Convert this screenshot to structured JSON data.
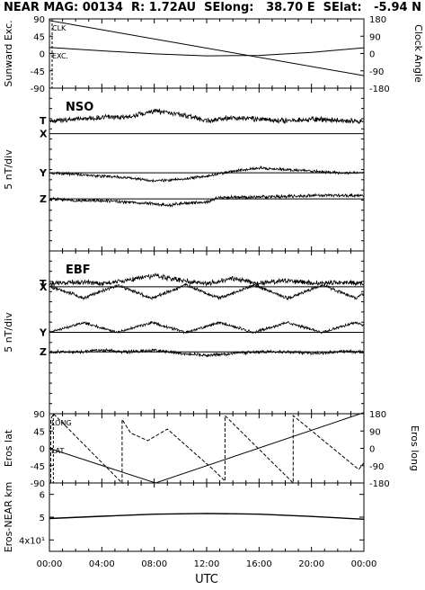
{
  "header": {
    "title": "NEAR MAG: 00134  R: 1.72AU  SElong:   38.70 E  SElat:   -5.94 N"
  },
  "x_axis": {
    "label": "UTC",
    "ticks": [
      "00:00",
      "04:00",
      "08:00",
      "12:00",
      "16:00",
      "20:00",
      "00:00"
    ]
  },
  "chart_data": [
    {
      "type": "line",
      "panel": "sunward-clock",
      "ylabel": "Sunward Exc.",
      "y2label": "Clock Angle",
      "yticks": [
        "90",
        "45",
        "0",
        "-45",
        "-90"
      ],
      "y2ticks": [
        "180",
        "90",
        "0",
        "-90",
        "-180"
      ],
      "annotations": [
        "CLK",
        "EXC."
      ],
      "ylim": [
        -90,
        90
      ],
      "y2lim": [
        -180,
        180
      ],
      "xlim": [
        0,
        24
      ],
      "series": [
        {
          "name": "CLK",
          "axis": "right",
          "x": [
            0,
            24
          ],
          "y": [
            171,
            -115
          ]
        },
        {
          "name": "EXC.",
          "axis": "left",
          "x": [
            0,
            4,
            8,
            12,
            16,
            20,
            24
          ],
          "y": [
            16,
            7,
            -1,
            -6,
            -5,
            3,
            15
          ]
        }
      ]
    },
    {
      "type": "line",
      "panel": "nso",
      "title": "NSO",
      "ylabel": "5 nT/div",
      "trace_labels": [
        "T",
        "X",
        "Y",
        "Z"
      ],
      "ylim": [
        -4,
        1
      ],
      "xlim": [
        0,
        24
      ],
      "series": [
        {
          "name": "T",
          "x": [
            0,
            2,
            4,
            6,
            8,
            10,
            12,
            14,
            16,
            18,
            20,
            22,
            24
          ],
          "y": [
            0.0,
            0.05,
            0.1,
            0.12,
            0.3,
            0.2,
            0.0,
            0.1,
            0.05,
            0.0,
            0.05,
            0.0,
            0.0
          ]
        },
        {
          "name": "X",
          "x": [
            0,
            24
          ],
          "y": [
            -0.4,
            -0.4
          ]
        },
        {
          "name": "Y",
          "x": [
            0,
            2,
            4,
            6,
            8,
            10,
            12,
            14,
            16,
            18,
            20,
            22,
            24
          ],
          "y": [
            -1.6,
            -1.65,
            -1.7,
            -1.75,
            -1.85,
            -1.8,
            -1.7,
            -1.55,
            -1.45,
            -1.5,
            -1.55,
            -1.6,
            -1.6
          ]
        },
        {
          "name": "Z",
          "x": [
            0,
            2,
            4,
            6,
            8,
            9,
            10,
            12,
            13,
            16,
            20,
            24
          ],
          "y": [
            -2.4,
            -2.45,
            -2.45,
            -2.5,
            -2.55,
            -2.6,
            -2.55,
            -2.5,
            -2.35,
            -2.35,
            -2.3,
            -2.3
          ]
        }
      ]
    },
    {
      "type": "line",
      "panel": "ebf",
      "title": "EBF",
      "ylabel": "5 nT/div",
      "trace_labels": [
        "T",
        "X",
        "Y",
        "Z"
      ],
      "ylim": [
        -4,
        1
      ],
      "xlim": [
        0,
        24
      ],
      "series": [
        {
          "name": "T",
          "x": [
            0,
            2,
            4,
            6,
            8,
            10,
            12,
            14,
            16,
            18,
            20,
            22,
            24
          ],
          "y": [
            0.0,
            0.05,
            0.0,
            0.1,
            0.25,
            0.1,
            0.0,
            0.15,
            0.0,
            0.1,
            0.0,
            0.05,
            0.0
          ]
        },
        {
          "name": "X",
          "x": [
            0,
            1.3,
            2.6,
            3.9,
            5.2,
            6.5,
            7.8,
            9.1,
            10.4,
            11.7,
            13.0,
            14.3,
            15.6,
            16.9,
            18.2,
            19.5,
            20.8,
            22.1,
            23.4,
            24
          ],
          "y": [
            -0.1,
            -0.25,
            -0.45,
            -0.25,
            -0.05,
            -0.25,
            -0.45,
            -0.25,
            -0.05,
            -0.25,
            -0.45,
            -0.25,
            -0.05,
            -0.25,
            -0.45,
            -0.25,
            -0.05,
            -0.25,
            -0.45,
            -0.3
          ]
        },
        {
          "name": "Y",
          "x": [
            0,
            1.3,
            2.6,
            3.9,
            5.2,
            6.5,
            7.8,
            9.1,
            10.4,
            11.7,
            13.0,
            14.3,
            15.6,
            16.9,
            18.2,
            19.5,
            20.8,
            22.1,
            23.4,
            24
          ],
          "y": [
            -1.5,
            -1.35,
            -1.2,
            -1.35,
            -1.5,
            -1.35,
            -1.2,
            -1.35,
            -1.5,
            -1.35,
            -1.2,
            -1.35,
            -1.5,
            -1.35,
            -1.2,
            -1.35,
            -1.5,
            -1.35,
            -1.2,
            -1.3
          ]
        },
        {
          "name": "Z",
          "x": [
            0,
            2,
            4,
            6,
            8,
            10,
            12,
            14,
            16,
            18,
            20,
            22,
            24
          ],
          "y": [
            -2.1,
            -2.1,
            -2.05,
            -2.1,
            -2.05,
            -2.15,
            -2.2,
            -2.15,
            -2.1,
            -2.1,
            -2.15,
            -2.1,
            -2.1
          ]
        }
      ]
    },
    {
      "type": "line",
      "panel": "eros-lat-long",
      "ylabel": "Eros lat",
      "y2label": "Eros long",
      "yticks": [
        "90",
        "45",
        "0",
        "-45",
        "-90"
      ],
      "y2ticks": [
        "180",
        "90",
        "0",
        "-90",
        "-180"
      ],
      "annotations": [
        "LONG",
        "LAT"
      ],
      "ylim": [
        -90,
        90
      ],
      "y2lim": [
        -180,
        180
      ],
      "xlim": [
        0,
        24
      ],
      "series": [
        {
          "name": "LONG",
          "axis": "right",
          "x": [
            0.1,
            0.1,
            0.3,
            5.55,
            5.55,
            6.2,
            7.5,
            9.0,
            12.5,
            13.4,
            13.4,
            18.6,
            18.6,
            23.6,
            24.0
          ],
          "y": [
            -180,
            150,
            180,
            -180,
            150,
            80,
            40,
            100,
            -110,
            -170,
            170,
            -180,
            170,
            -110,
            -75
          ]
        },
        {
          "name": "LAT",
          "axis": "left",
          "x": [
            0,
            8.1,
            24
          ],
          "y": [
            0,
            -90,
            93
          ]
        }
      ]
    },
    {
      "type": "line",
      "panel": "eros-near-distance",
      "ylabel": "Eros-NEAR km",
      "yticks": [
        "6",
        "5",
        "4x10¹"
      ],
      "ylim": [
        35,
        65
      ],
      "xlim": [
        0,
        24
      ],
      "series": [
        {
          "name": "distance",
          "x": [
            0,
            4,
            8,
            12,
            16,
            20,
            24
          ],
          "y": [
            49.4,
            50.4,
            51.3,
            51.6,
            51.3,
            50.3,
            49.1
          ]
        }
      ]
    }
  ]
}
